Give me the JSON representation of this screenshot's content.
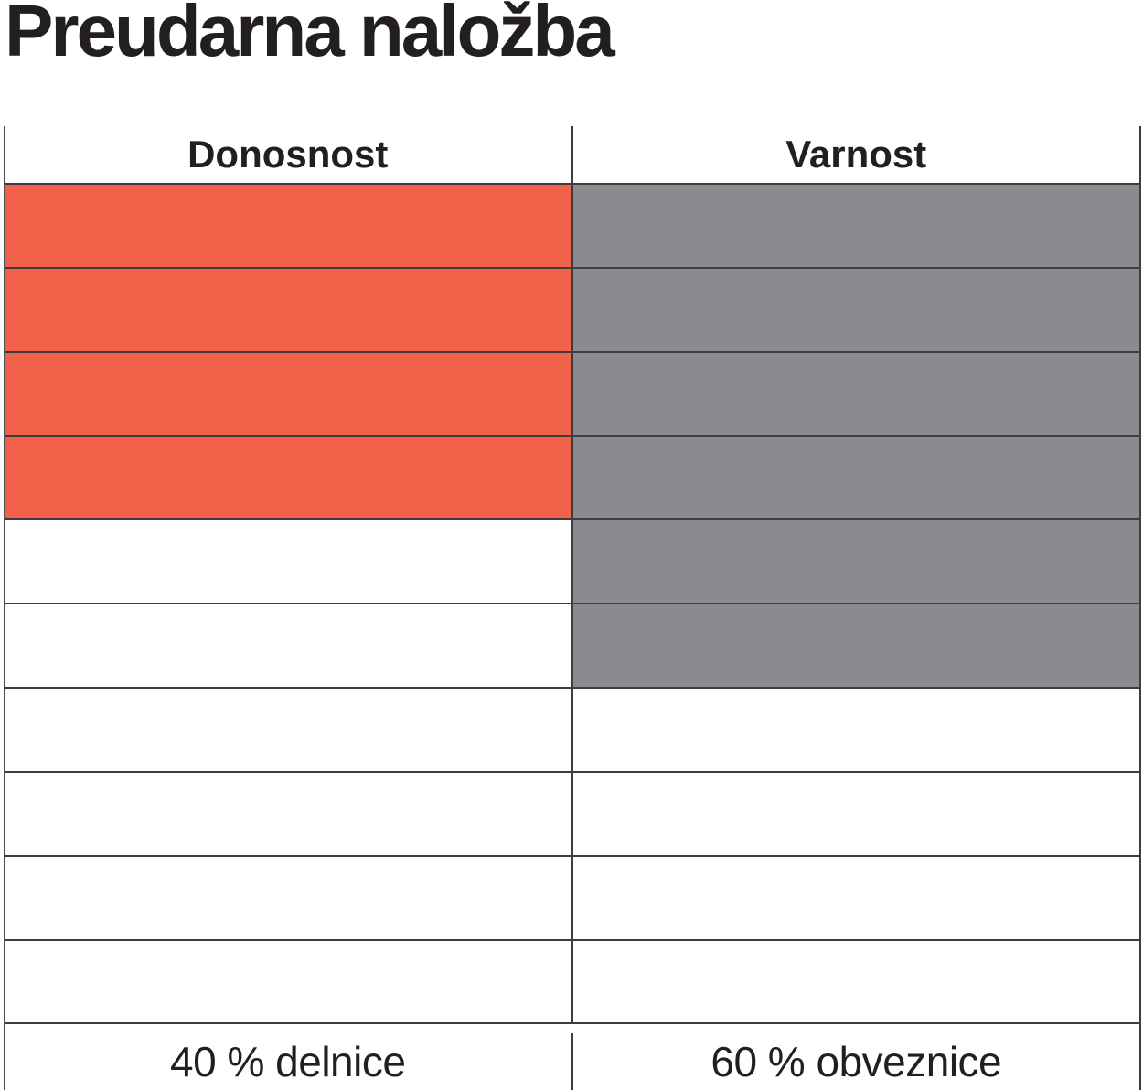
{
  "chart_data": {
    "type": "table",
    "title": "Preudarna naložba",
    "grid_rows": 10,
    "legend_position": "bottom",
    "colors": {
      "return_fill": "#F2624B",
      "safety_fill": "#898B8E",
      "border": "#3d3d3d",
      "text": "#231f20",
      "background": "#ffffff"
    },
    "columns": [
      {
        "header": "Donosnost",
        "filled_cells": 4,
        "total_cells": 10,
        "fill_color": "#F2624B",
        "footer_label": "40 % delnice",
        "allocation_pct": 40,
        "asset_class": "delnice"
      },
      {
        "header": "Varnost",
        "filled_cells": 6,
        "total_cells": 10,
        "fill_color": "#898B8E",
        "footer_label": "60 % obveznice",
        "allocation_pct": 60,
        "asset_class": "obveznice"
      }
    ]
  }
}
